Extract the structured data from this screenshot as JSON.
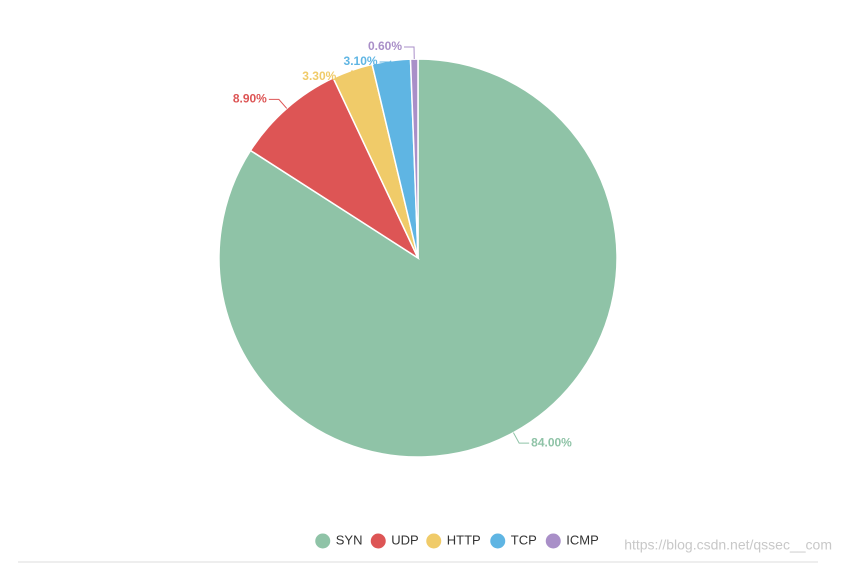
{
  "chart_data": {
    "type": "pie",
    "categories": [
      "SYN",
      "UDP",
      "HTTP",
      "TCP",
      "ICMP"
    ],
    "values": [
      84,
      8.9,
      3.3,
      3.1,
      0.6
    ],
    "value_labels": [
      "84.00%",
      "8.90%",
      "3.30%",
      "3.10%",
      "0.60%"
    ],
    "colors": [
      "#8fc3a7",
      "#dd5555",
      "#f0cb69",
      "#5fb5e3",
      "#a98fc8"
    ],
    "legend": "bottom"
  },
  "watermark": "https://blog.csdn.net/qssec__com"
}
